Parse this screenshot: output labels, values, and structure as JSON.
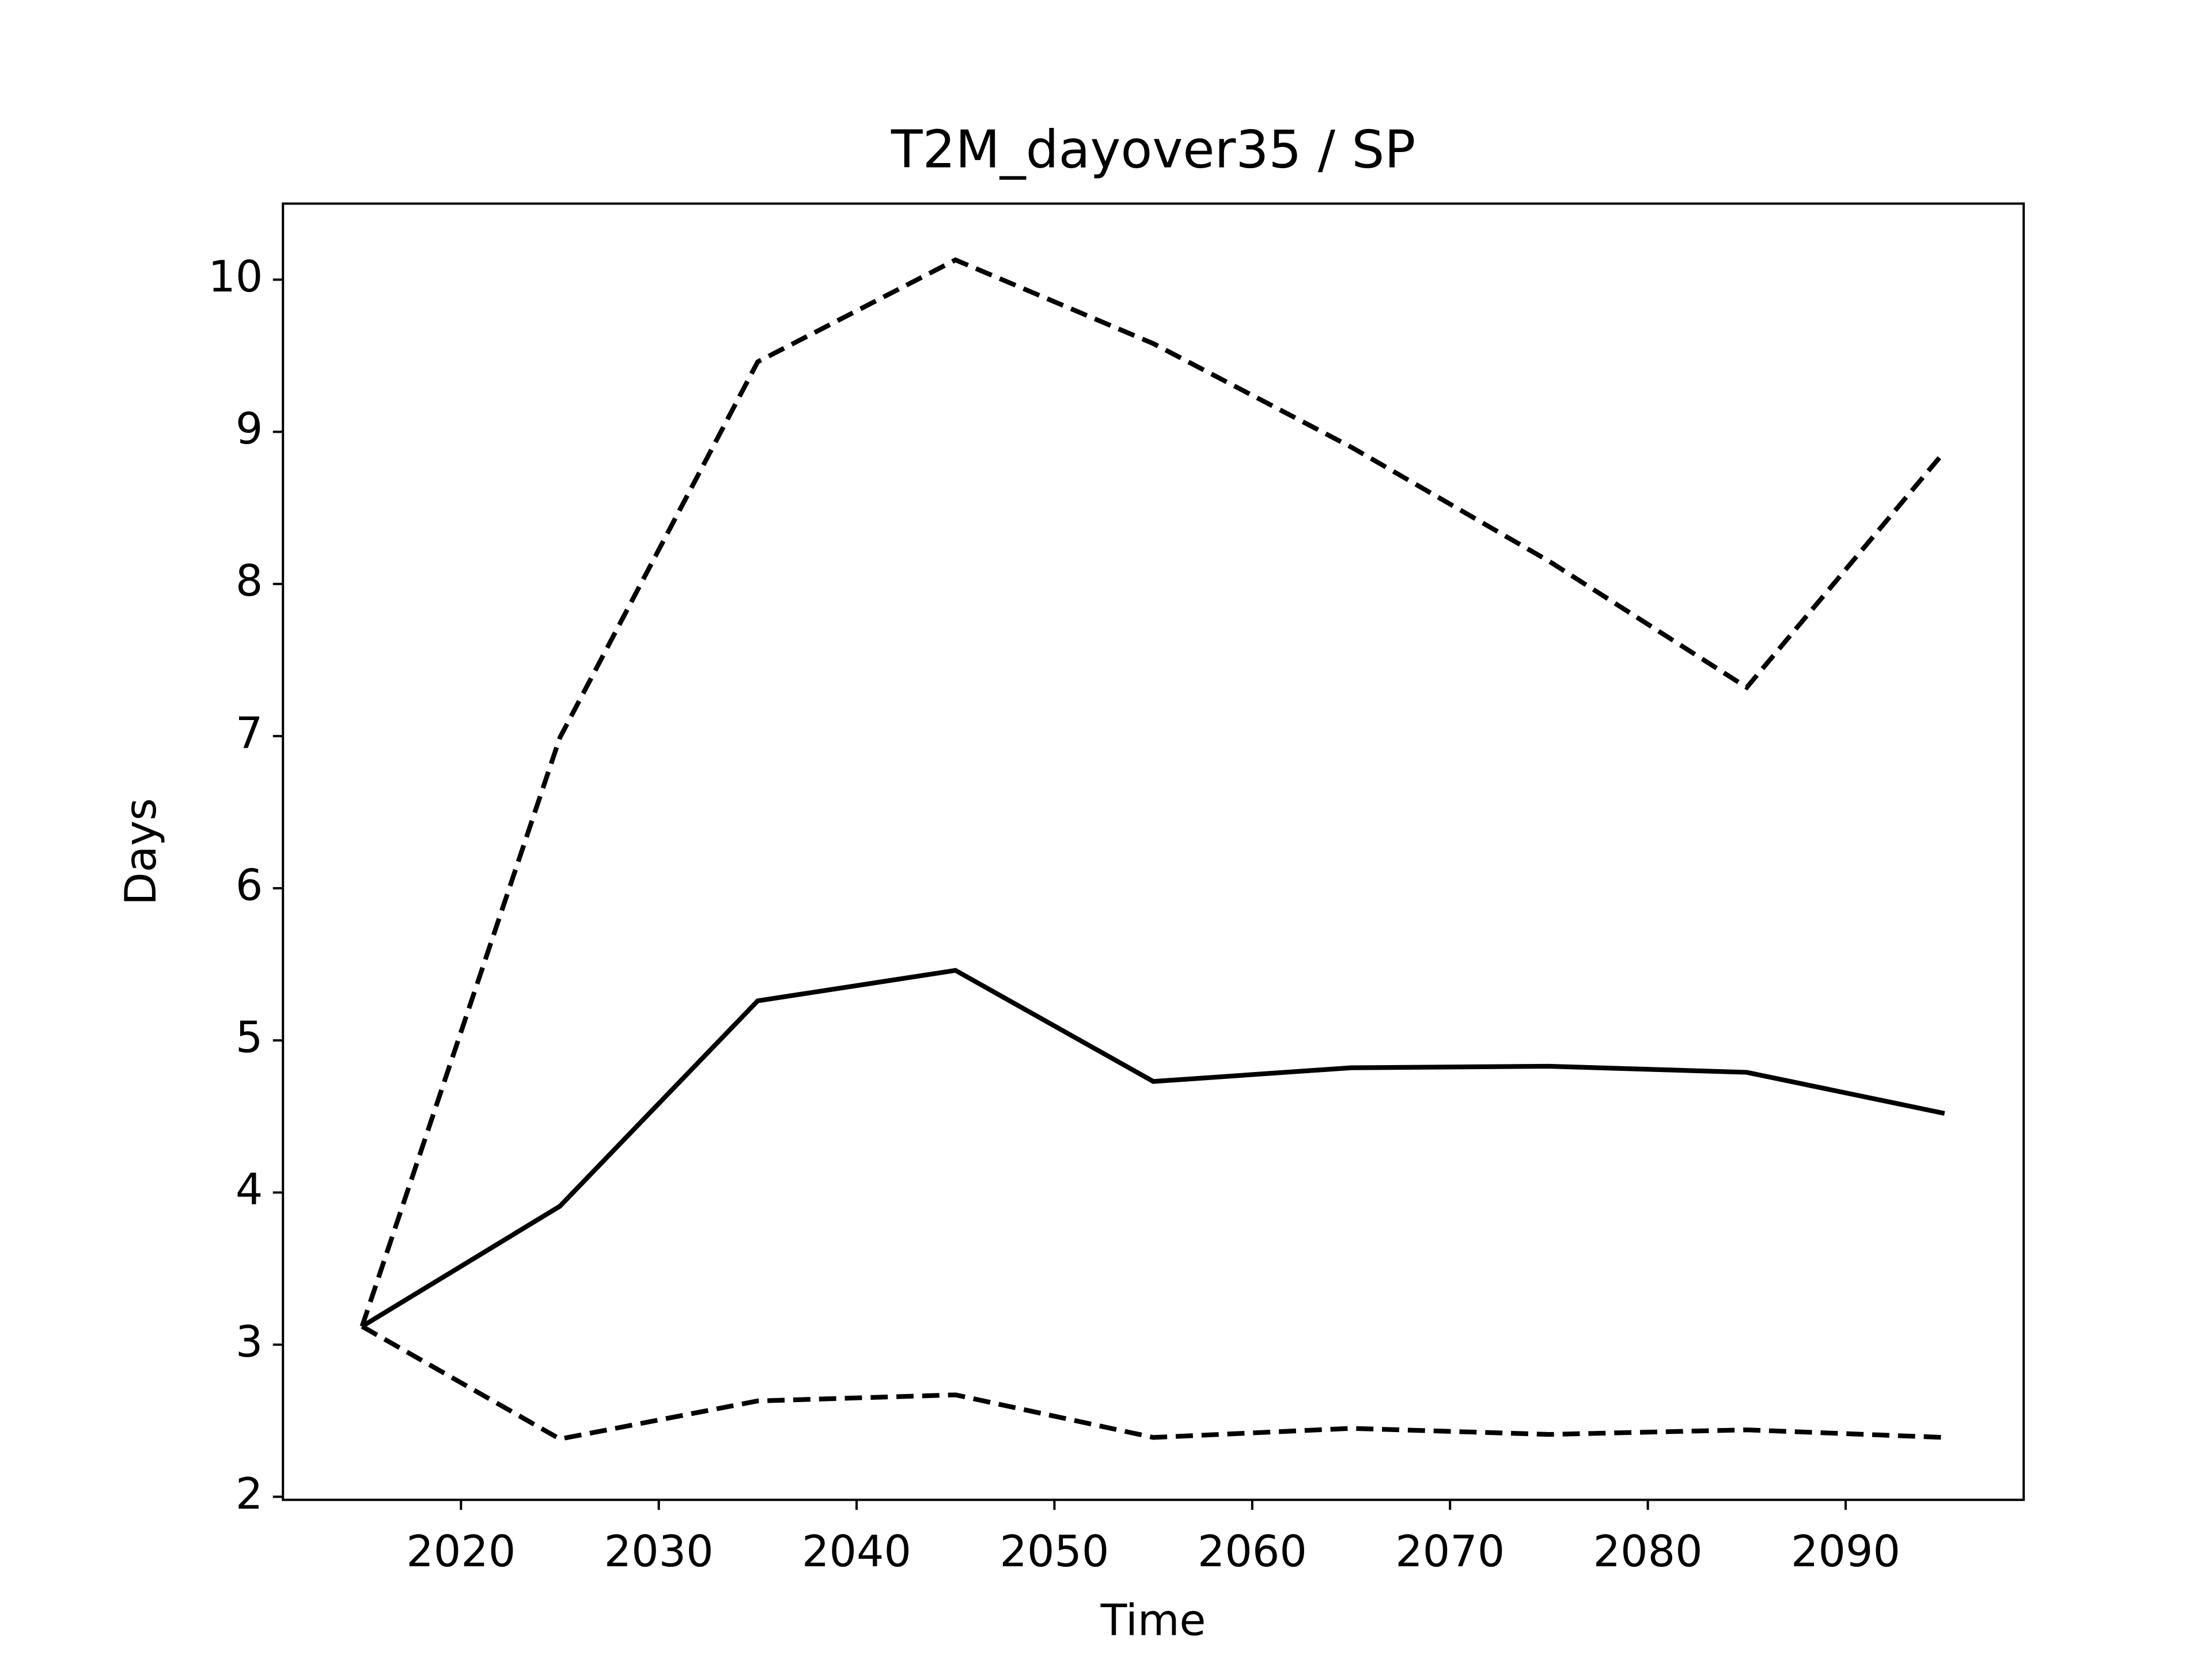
{
  "chart_data": {
    "type": "line",
    "title": "T2M_dayover35 / SP",
    "x_label": "Time",
    "y_label": "Days",
    "x": [
      2015,
      2025,
      2035,
      2045,
      2055,
      2065,
      2075,
      2085,
      2095
    ],
    "series": [
      {
        "color": "#000000",
        "dash": false,
        "values": [
          3.12,
          3.91,
          5.26,
          5.46,
          4.73,
          4.82,
          4.83,
          4.79,
          4.52
        ]
      },
      {
        "color": "#000000",
        "dash": true,
        "values": [
          3.12,
          6.99,
          9.46,
          10.13,
          9.58,
          8.9,
          8.15,
          7.32,
          8.87
        ]
      },
      {
        "color": "#000000",
        "dash": true,
        "values": [
          3.12,
          2.38,
          2.63,
          2.67,
          2.39,
          2.45,
          2.41,
          2.44,
          2.39
        ]
      }
    ],
    "xlim": [
      2011,
      2099
    ],
    "xticks": [
      2020,
      2030,
      2040,
      2050,
      2060,
      2070,
      2080,
      2090
    ],
    "ylim": [
      1.98,
      10.5
    ],
    "yticks": [
      2,
      3,
      4,
      5,
      6,
      7,
      8,
      9,
      10
    ],
    "grid": false
  }
}
